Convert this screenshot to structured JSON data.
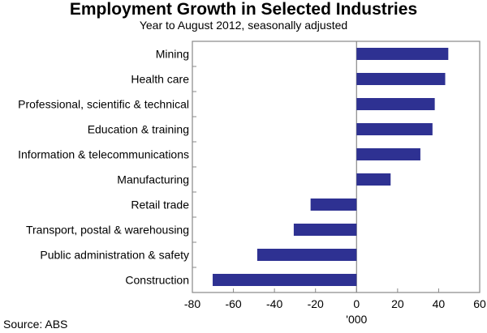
{
  "chart_data": {
    "type": "bar",
    "orientation": "horizontal",
    "title": "Employment Growth in Selected Industries",
    "subtitle": "Year to August 2012, seasonally adjusted",
    "xlabel": "'000",
    "ylabel": "",
    "xlim": [
      -80,
      60
    ],
    "xticks": [
      "-80",
      "-60",
      "-40",
      "-20",
      "0",
      "20",
      "40",
      "60"
    ],
    "grid": false,
    "bar_color": "#2e3192",
    "categories": [
      "Mining",
      "Health care",
      "Professional, scientific & technical",
      "Education & training",
      "Information & telecommunications",
      "Manufacturing",
      "Retail trade",
      "Transport, postal & warehousing",
      "Public administration & safety",
      "Construction"
    ],
    "values": [
      44.7,
      43.2,
      38.1,
      37.0,
      31.1,
      16.6,
      -22.4,
      -30.6,
      -48.4,
      -70.1
    ],
    "source": "Source: ABS"
  }
}
